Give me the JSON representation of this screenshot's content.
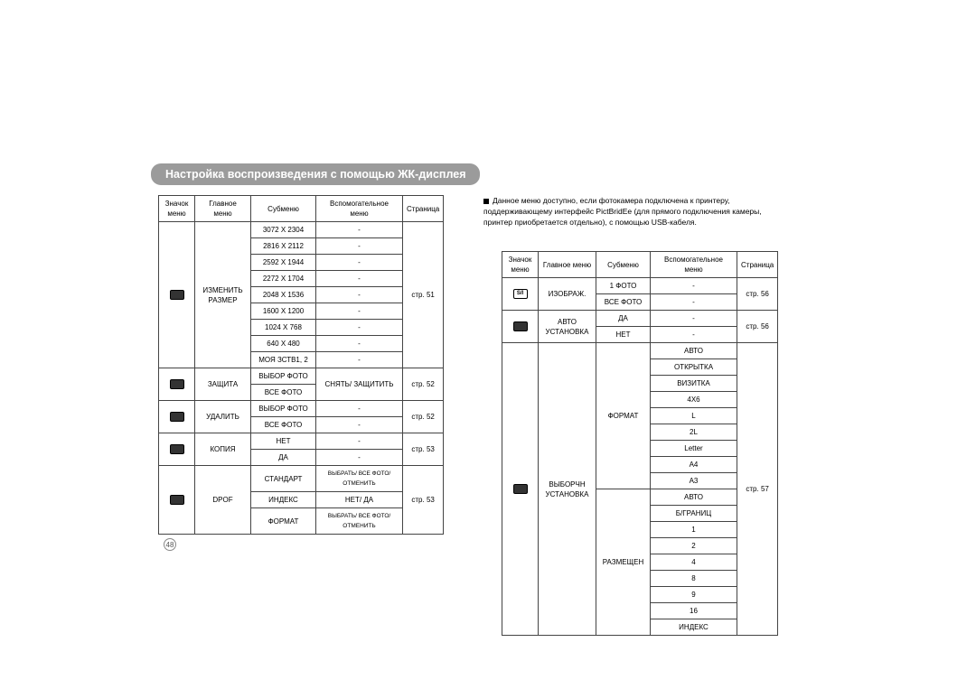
{
  "title": "Настройка воспроизведения с помощью ЖК-дисплея",
  "pageNumber": "48",
  "headers": {
    "icon": "Значок меню",
    "main": "Главное меню",
    "sub": "Субменю",
    "aux": "Вспомогательное меню",
    "page": "Страница"
  },
  "leftTable": {
    "sections": [
      {
        "icon": "resize-icon",
        "main": "ИЗМЕНИТЬ РАЗМЕР",
        "page": "стр. 51",
        "rows": [
          {
            "sub": "3072 X 2304",
            "aux": "-"
          },
          {
            "sub": "2816 X 2112",
            "aux": "-"
          },
          {
            "sub": "2592 X 1944",
            "aux": "-"
          },
          {
            "sub": "2272 X 1704",
            "aux": "-"
          },
          {
            "sub": "2048 X 1536",
            "aux": "-"
          },
          {
            "sub": "1600 X 1200",
            "aux": "-"
          },
          {
            "sub": "1024 X 768",
            "aux": "-"
          },
          {
            "sub": "640 X 480",
            "aux": "-"
          },
          {
            "sub": "МОЯ ЗСТВ1, 2",
            "aux": "-"
          }
        ]
      },
      {
        "icon": "protect-icon",
        "main": "ЗАЩИТА",
        "page": "стр. 52",
        "aux": "СНЯТЬ/ ЗАЩИТИТЬ",
        "rows": [
          {
            "sub": "ВЫБОР ФОТО"
          },
          {
            "sub": "ВСЕ ФОТО"
          }
        ]
      },
      {
        "icon": "delete-icon",
        "main": "УДАЛИТЬ",
        "page": "стр. 52",
        "rows": [
          {
            "sub": "ВЫБОР ФОТО",
            "aux": "-"
          },
          {
            "sub": "ВСЕ ФОТО",
            "aux": "-"
          }
        ]
      },
      {
        "icon": "copy-icon",
        "main": "КОПИЯ",
        "page": "стр. 53",
        "rows": [
          {
            "sub": "НЕТ",
            "aux": "-"
          },
          {
            "sub": "ДА",
            "aux": "-"
          }
        ]
      },
      {
        "icon": "dpof-icon",
        "main": "DPOF",
        "page": "стр. 53",
        "rows": [
          {
            "sub": "СТАНДАРТ",
            "aux": "ВЫБРАТЬ/ ВСЕ ФОТО/ ОТМЕНИТЬ",
            "smallAux": true
          },
          {
            "sub": "ИНДЕКС",
            "aux": "НЕТ/ ДА"
          },
          {
            "sub": "ФОРМАТ",
            "aux": "ВЫБРАТЬ/ ВСЕ ФОТО/ ОТМЕНИТЬ",
            "smallAux": true
          }
        ]
      }
    ]
  },
  "note": "Данное меню доступно, если фотокамера подключена к принтеру, поддерживающему интерфейс PictBridEe (для прямого подключения камеры, принтер приобретается отдельно), с помощью USB-кабеля.",
  "rightTable": {
    "sections": [
      {
        "icon": "image-icon",
        "iconWhite": true,
        "iconText": "S/I",
        "main": "ИЗОБРАЖ.",
        "page": "стр. 56",
        "rows": [
          {
            "sub": "1 ФОТО",
            "aux": "-"
          },
          {
            "sub": "ВСЕ ФОТО",
            "aux": "-"
          }
        ]
      },
      {
        "icon": "auto-set-icon",
        "main": "АВТО УСТАНОВКА",
        "page": "стр. 56",
        "rows": [
          {
            "sub": "ДА",
            "aux": "-"
          },
          {
            "sub": "НЕТ",
            "aux": "-"
          }
        ]
      },
      {
        "icon": "select-set-icon",
        "main": "ВЫБОРЧН УСТАНОВКА",
        "page": "стр. 57",
        "subsections": [
          {
            "sub": "ФОРМАТ",
            "auxList": [
              "АВТО",
              "ОТКРЫТКА",
              "ВИЗИТКА",
              "4X6",
              "L",
              "2L",
              "Letter",
              "A4",
              "A3"
            ]
          },
          {
            "sub": "РАЗМЕЩЕН",
            "auxList": [
              "АВТО",
              "Б/ГРАНИЦ",
              "1",
              "2",
              "4",
              "8",
              "9",
              "16",
              "ИНДЕКС"
            ]
          }
        ]
      }
    ]
  }
}
